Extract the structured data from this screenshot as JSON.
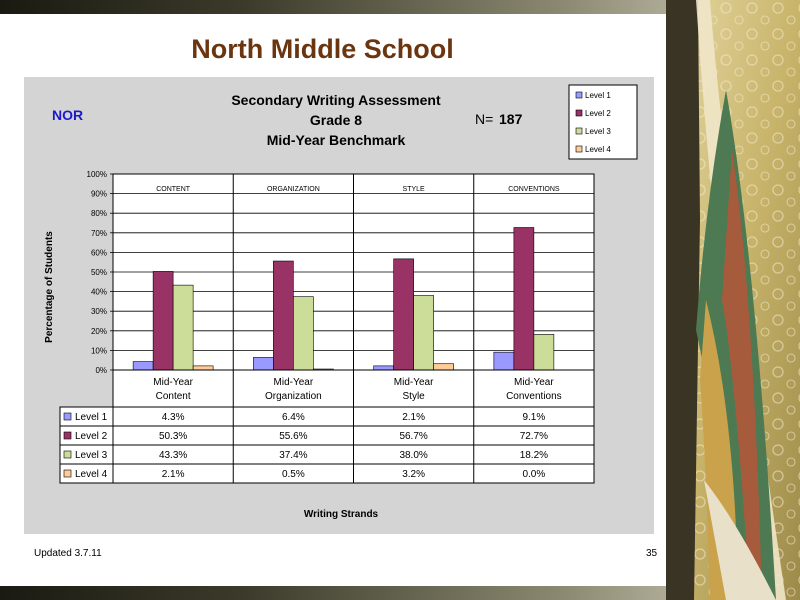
{
  "slide": {
    "title": "North Middle School",
    "updated": "Updated  3.7.11",
    "page_number": "35"
  },
  "chart_header": {
    "school_code": "NOR",
    "title_lines": [
      "Secondary Writing Assessment",
      "Grade 8",
      "Mid-Year Benchmark"
    ],
    "n_label": "N=",
    "n_value": "187"
  },
  "chart_data": {
    "type": "bar",
    "title": "Secondary Writing Assessment Grade 8 Mid-Year Benchmark",
    "ylabel": "Percentage of Students",
    "xlabel": "Writing Strands",
    "ylim": [
      0,
      100
    ],
    "yticks": [
      "0%",
      "10%",
      "20%",
      "30%",
      "40%",
      "50%",
      "60%",
      "70%",
      "80%",
      "90%",
      "100%"
    ],
    "grid": true,
    "legend_position": "top-right",
    "column_headers": [
      "CONTENT",
      "ORGANIZATION",
      "STYLE",
      "CONVENTIONS"
    ],
    "categories": [
      [
        "Mid-Year",
        "Content"
      ],
      [
        "Mid-Year",
        "Organization"
      ],
      [
        "Mid-Year",
        "Style"
      ],
      [
        "Mid-Year",
        "Conventions"
      ]
    ],
    "series": [
      {
        "name": "Level 1",
        "color": "#9999ff",
        "values": [
          4.3,
          6.4,
          2.1,
          9.1
        ],
        "labels": [
          "4.3%",
          "6.4%",
          "2.1%",
          "9.1%"
        ]
      },
      {
        "name": "Level 2",
        "color": "#993366",
        "values": [
          50.3,
          55.6,
          56.7,
          72.7
        ],
        "labels": [
          "50.3%",
          "55.6%",
          "56.7%",
          "72.7%"
        ]
      },
      {
        "name": "Level 3",
        "color": "#ccdd99",
        "values": [
          43.3,
          37.4,
          38.0,
          18.2
        ],
        "labels": [
          "43.3%",
          "37.4%",
          "38.0%",
          "18.2%"
        ]
      },
      {
        "name": "Level 4",
        "color": "#ffcc99",
        "values": [
          2.1,
          0.5,
          3.2,
          0.0
        ],
        "labels": [
          "2.1%",
          "0.5%",
          "3.2%",
          "0.0%"
        ]
      }
    ]
  }
}
